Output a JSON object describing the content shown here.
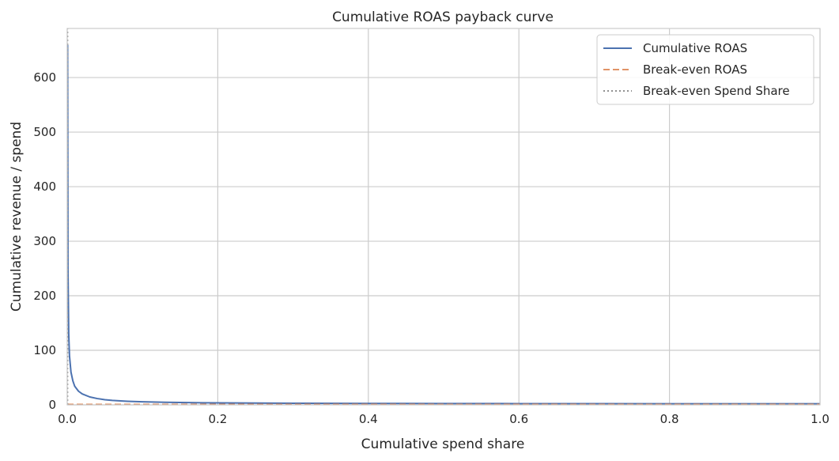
{
  "chart_data": {
    "type": "line",
    "title": "Cumulative ROAS payback curve",
    "xlabel": "Cumulative spend share",
    "ylabel": "Cumulative revenue / spend",
    "xlim": [
      0,
      1
    ],
    "ylim": [
      0,
      690
    ],
    "xticks": [
      0,
      0.2,
      0.4,
      0.6,
      0.8,
      1.0
    ],
    "xtick_labels": [
      "0.0",
      "0.2",
      "0.4",
      "0.6",
      "0.8",
      "1.0"
    ],
    "yticks": [
      0,
      100,
      200,
      300,
      400,
      500,
      600
    ],
    "ytick_labels": [
      "0",
      "100",
      "200",
      "300",
      "400",
      "500",
      "600"
    ],
    "grid": true,
    "legend_position": "top-right",
    "series": [
      {
        "name": "Cumulative ROAS",
        "style": "solid",
        "color": "#4c72b0",
        "x": [
          0.0005,
          0.001,
          0.002,
          0.003,
          0.005,
          0.0075,
          0.01,
          0.015,
          0.02,
          0.03,
          0.04,
          0.05,
          0.06,
          0.08,
          0.1,
          0.13,
          0.16,
          0.2,
          0.25,
          0.3,
          0.4,
          0.5,
          0.6,
          0.7,
          0.8,
          0.9,
          1.0
        ],
        "y": [
          660,
          250,
          130,
          90,
          60,
          44,
          34,
          25,
          20,
          14.5,
          11.5,
          9.5,
          8.2,
          6.6,
          5.6,
          4.7,
          4.1,
          3.6,
          3.2,
          2.9,
          2.6,
          2.4,
          2.25,
          2.15,
          2.08,
          2.03,
          2.0
        ]
      },
      {
        "name": "Break-even ROAS",
        "style": "dashed",
        "color": "#dd8452",
        "x": [
          0,
          1
        ],
        "y": [
          1,
          1
        ]
      },
      {
        "name": "Break-even Spend Share",
        "style": "dotted",
        "color": "#808080",
        "x": [
          0.0005,
          0.0005
        ],
        "y": [
          0,
          690
        ]
      }
    ]
  }
}
